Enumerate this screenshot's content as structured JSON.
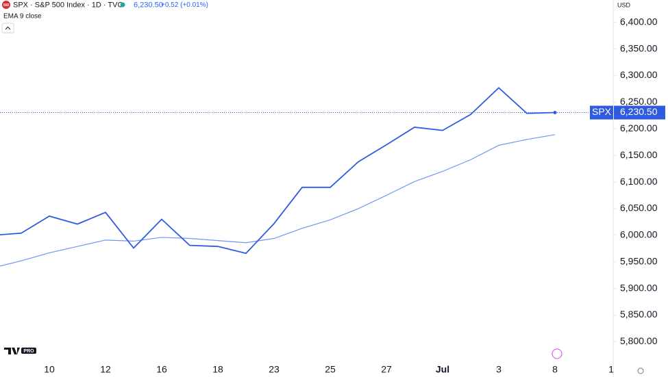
{
  "chart_data": {
    "type": "line",
    "title": "SPX · S&P 500 Index · 1D · TVC",
    "header_price": "6,230.50",
    "header_change": "+0.52 (+0.01%)",
    "symbol_badge": "500",
    "currency": "USD",
    "logo_badge": "PRO",
    "categories": [
      null,
      null,
      "10",
      null,
      "12",
      null,
      "16",
      null,
      "18",
      null,
      "23",
      null,
      "25",
      null,
      "27",
      null,
      "Jul",
      null,
      "3",
      null,
      "8",
      null,
      "1"
    ],
    "series": [
      {
        "name": "SPX",
        "color": "#2f5be0",
        "values": [
          6000,
          6004,
          6036,
          6021,
          6043,
          5976,
          6030,
          5981,
          5979,
          5966,
          6022,
          6090,
          6090,
          6138,
          6170,
          6203,
          6197,
          6227,
          6277,
          6229,
          6230.5,
          null,
          null
        ]
      },
      {
        "name": "EMA 9 close",
        "color": "#6e95ef",
        "values": [
          5939,
          5952,
          5967,
          5979,
          5991,
          5989,
          5996,
          5994,
          5990,
          5986,
          5994,
          6013,
          6029,
          6050,
          6075,
          6101,
          6120,
          6142,
          6169,
          6180,
          6189,
          null,
          null
        ]
      }
    ],
    "last_price": {
      "value": 6230.5,
      "label": "6,230.50"
    },
    "ylim": [
      5762,
      6442
    ],
    "yticks": [
      {
        "value": 5800,
        "label": "5,800.00"
      },
      {
        "value": 5850,
        "label": "5,850.00"
      },
      {
        "value": 5900,
        "label": "5,900.00"
      },
      {
        "value": 5950,
        "label": "5,950.00"
      },
      {
        "value": 6000,
        "label": "6,000.00"
      },
      {
        "value": 6050,
        "label": "6,050.00"
      },
      {
        "value": 6100,
        "label": "6,100.00"
      },
      {
        "value": 6150,
        "label": "6,150.00"
      },
      {
        "value": 6200,
        "label": "6,200.00"
      },
      {
        "value": 6250,
        "label": "6,250.00"
      },
      {
        "value": 6300,
        "label": "6,300.00"
      },
      {
        "value": 6350,
        "label": "6,350.00"
      },
      {
        "value": 6400,
        "label": "6,400.00"
      }
    ]
  }
}
